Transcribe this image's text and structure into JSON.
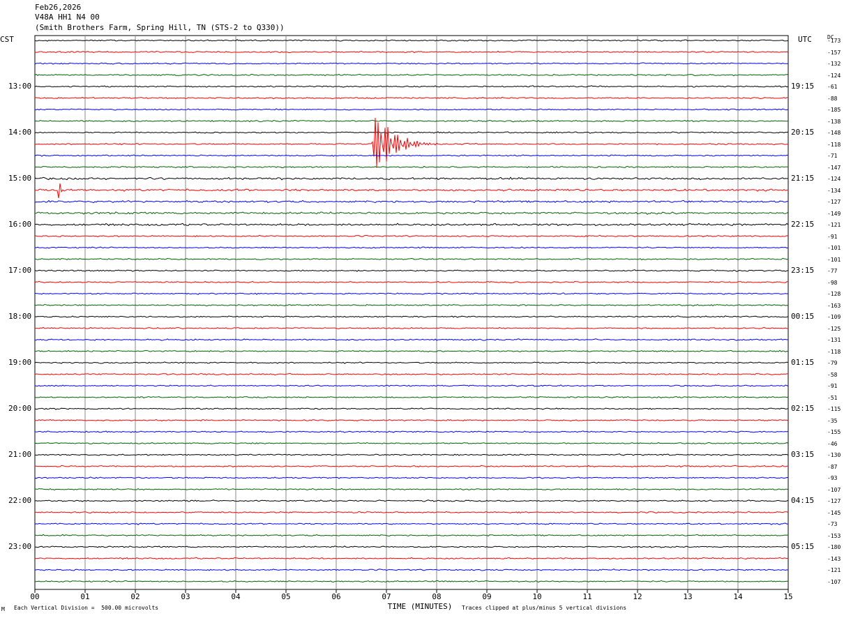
{
  "header": {
    "date": "Feb26,2026",
    "station": "V48A HH1 N4 00",
    "location": "(Smith Brothers Farm, Spring Hill, TN (STS-2 to Q330))"
  },
  "corner_left": "CST",
  "corner_right": "UTC",
  "dc_label": "DC",
  "footer": {
    "scale": "Each Vertical Division =  500.00 microvolts",
    "clip": "Traces clipped at plus/minus 5 vertical divisions",
    "mark": "M"
  },
  "trace_colors": [
    "#000000",
    "#ff0000",
    "#0000ff",
    "#006400"
  ],
  "chart_data": {
    "type": "line",
    "xlabel": "TIME (MINUTES)",
    "x_ticks": [
      "00",
      "01",
      "02",
      "03",
      "04",
      "05",
      "06",
      "07",
      "08",
      "09",
      "10",
      "11",
      "12",
      "13",
      "14",
      "15"
    ],
    "xlim": [
      0,
      15
    ],
    "grid": true,
    "left_labels": [
      "13:00",
      "14:00",
      "15:00",
      "16:00",
      "17:00",
      "18:00",
      "19:00",
      "20:00",
      "21:00",
      "22:00",
      "23:00"
    ],
    "right_labels": [
      "19:15",
      "20:15",
      "21:15",
      "22:15",
      "23:15",
      "00:15",
      "01:15",
      "02:15",
      "03:15",
      "04:15",
      "05:15"
    ],
    "dc_offsets": [
      "-173",
      "-157",
      "-132",
      "-124",
      "-61",
      "-88",
      "-185",
      "-138",
      "-148",
      "-118",
      "-71",
      "-147",
      "-124",
      "-134",
      "-127",
      "-149",
      "-121",
      "-91",
      "-101",
      "-101",
      "-77",
      "-98",
      "-128",
      "-163",
      "-109",
      "-125",
      "-131",
      "-118",
      "-79",
      "-58",
      "-91",
      "-51",
      "-115",
      "-35",
      "-155",
      "-46",
      "-130",
      "-87",
      "-93",
      "-107",
      "-127",
      "-145",
      "-73",
      "-153",
      "-180",
      "-143",
      "-121",
      "-107"
    ],
    "events": [
      {
        "trace_index": 9,
        "start_minute": 6.7,
        "duration_minutes": 1.3,
        "peak_divisions": 5
      },
      {
        "trace_index": 13,
        "start_minute": 0.45,
        "duration_minutes": 0.2,
        "peak_divisions": 1.5
      }
    ]
  }
}
